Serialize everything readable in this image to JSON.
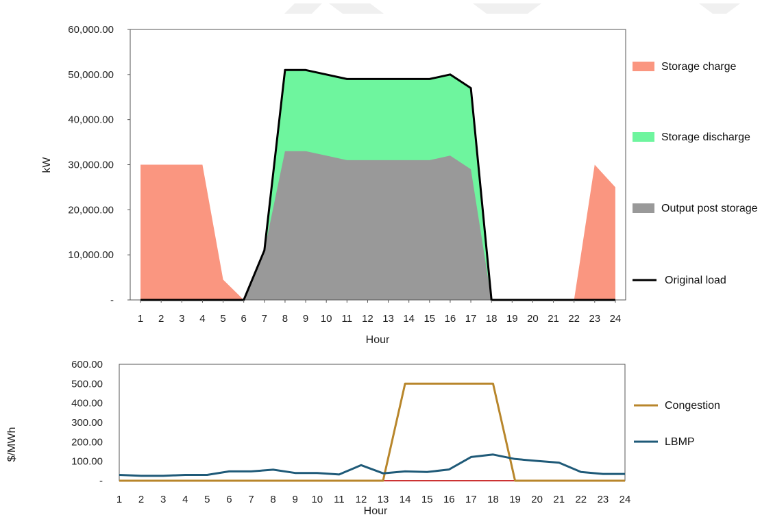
{
  "chart_data": [
    {
      "type": "area",
      "xlabel": "Hour",
      "ylabel": "kW",
      "x": [
        1,
        2,
        3,
        4,
        5,
        6,
        7,
        8,
        9,
        10,
        11,
        12,
        13,
        14,
        15,
        16,
        17,
        18,
        19,
        20,
        21,
        22,
        23,
        24
      ],
      "xlim": [
        0.5,
        24.5
      ],
      "ylim": [
        0,
        60000
      ],
      "yticks": [
        0,
        10000,
        20000,
        30000,
        40000,
        50000,
        60000
      ],
      "yticklabels": [
        "-",
        "10,000.00",
        "20,000.00",
        "30,000.00",
        "40,000.00",
        "50,000.00",
        "60,000.00"
      ],
      "legend_position": "right",
      "grid": false,
      "series": [
        {
          "name": "Storage charge",
          "kind": "area",
          "color": "#fa9680",
          "values": [
            30000,
            30000,
            30000,
            30000,
            4500,
            0,
            0,
            0,
            0,
            0,
            0,
            0,
            0,
            0,
            0,
            0,
            0,
            0,
            0,
            0,
            0,
            0,
            30000,
            25000
          ]
        },
        {
          "name": "Storage discharge",
          "kind": "area",
          "color": "#6ef59e",
          "values": [
            0,
            0,
            0,
            0,
            0,
            0,
            11000,
            51000,
            51000,
            50000,
            49000,
            49000,
            49000,
            49000,
            49000,
            50000,
            47000,
            0,
            0,
            0,
            0,
            0,
            0,
            0
          ]
        },
        {
          "name": "Output post storage",
          "kind": "area",
          "color": "#999999",
          "values": [
            0,
            0,
            0,
            0,
            0,
            0,
            11000,
            33000,
            33000,
            32000,
            31000,
            31000,
            31000,
            31000,
            31000,
            32000,
            29000,
            0,
            0,
            0,
            0,
            0,
            0,
            0
          ]
        },
        {
          "name": "Original load",
          "kind": "line",
          "color": "#000000",
          "values": [
            0,
            0,
            0,
            0,
            0,
            0,
            11000,
            51000,
            51000,
            50000,
            49000,
            49000,
            49000,
            49000,
            49000,
            50000,
            47000,
            0,
            0,
            0,
            0,
            0,
            0,
            0
          ]
        }
      ]
    },
    {
      "type": "line",
      "xlabel": "Hour",
      "ylabel": "$/MWh",
      "x": [
        1,
        2,
        3,
        4,
        5,
        6,
        7,
        8,
        9,
        10,
        11,
        12,
        13,
        14,
        15,
        16,
        17,
        18,
        19,
        20,
        21,
        22,
        23,
        24
      ],
      "xlim": [
        1,
        24
      ],
      "ylim": [
        0,
        600
      ],
      "yticks": [
        0,
        100,
        200,
        300,
        400,
        500,
        600
      ],
      "yticklabels": [
        "-",
        "100.00",
        "200.00",
        "300.00",
        "400.00",
        "500.00",
        "600.00"
      ],
      "legend_position": "right",
      "grid": false,
      "baseline_color": "#cc3333",
      "series": [
        {
          "name": "Congestion",
          "color": "#b8862b",
          "values": [
            0,
            0,
            0,
            0,
            0,
            0,
            0,
            0,
            0,
            0,
            0,
            0,
            0,
            500,
            500,
            500,
            500,
            500,
            0,
            0,
            0,
            0,
            0,
            0
          ]
        },
        {
          "name": "LBMP",
          "color": "#1f5a78",
          "values": [
            30,
            25,
            25,
            30,
            30,
            48,
            48,
            57,
            40,
            40,
            32,
            80,
            38,
            48,
            45,
            58,
            122,
            135,
            112,
            102,
            93,
            45,
            35,
            35
          ]
        }
      ]
    }
  ]
}
